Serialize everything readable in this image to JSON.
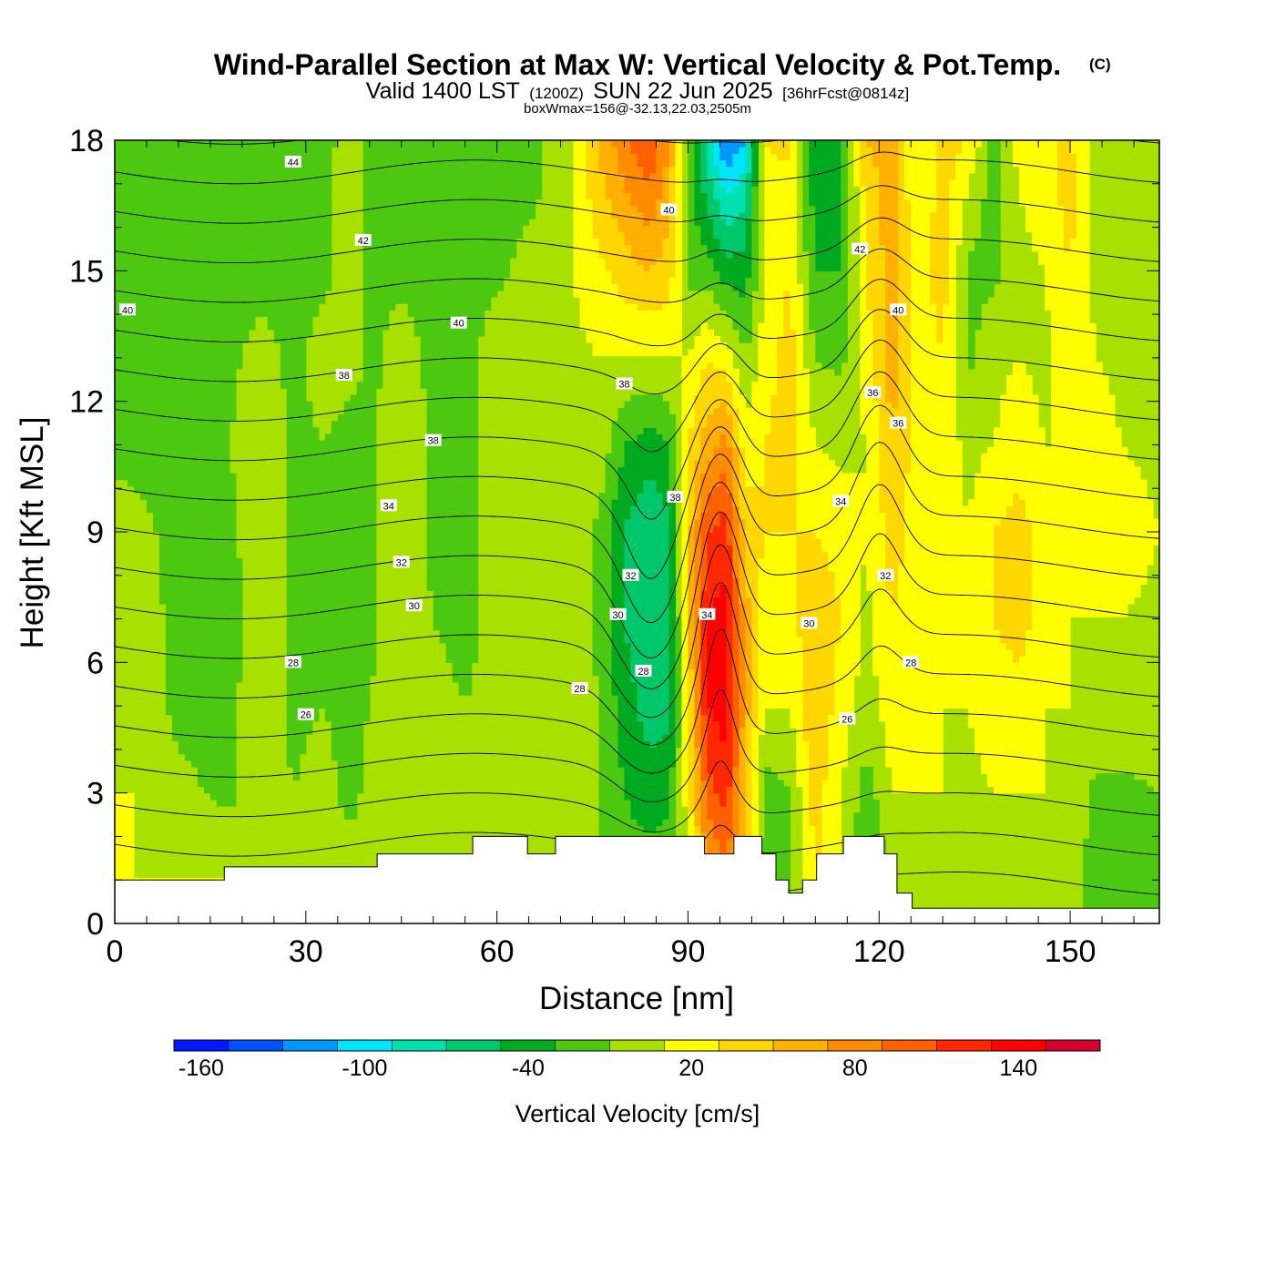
{
  "chart_data": {
    "type": "heatmap",
    "title": "Wind-Parallel Section at Max W: Vertical Velocity & Pot.Temp.",
    "title_mark": "(C)",
    "subtitle": {
      "part1": "Valid 1400 LST",
      "part2": "(1200Z)",
      "part3": "SUN 22 Jun 2025",
      "part4": "[36hrFcst@0814z]"
    },
    "subtitle2": "boxWmax=156@-32.13,22.03,2505m",
    "xlabel": "Distance [nm]",
    "ylabel": "Height [Kft MSL]",
    "xlim": [
      0,
      164
    ],
    "ylim": [
      0,
      18
    ],
    "x_ticks": [
      0,
      30,
      60,
      90,
      120,
      150
    ],
    "y_ticks": [
      0,
      3,
      6,
      9,
      12,
      15,
      18
    ],
    "grid": false,
    "colorbar": {
      "label": "Vertical Velocity [cm/s]",
      "boundaries": [
        -170,
        -150,
        -130,
        -110,
        -90,
        -70,
        -50,
        -30,
        -10,
        10,
        30,
        50,
        70,
        90,
        110,
        130,
        150,
        170
      ],
      "colors": [
        "#0019ff",
        "#0050ff",
        "#0096ff",
        "#00e5ff",
        "#00e0b0",
        "#00c86a",
        "#00aa20",
        "#4dc810",
        "#a8e000",
        "#ffff00",
        "#ffd700",
        "#ffb000",
        "#ff8c00",
        "#ff6000",
        "#ff2800",
        "#ff0000",
        "#d4002e"
      ],
      "tick_labels": [
        "-160",
        "-100",
        "-40",
        "20",
        "80",
        "140"
      ],
      "tick_values": [
        -160,
        -100,
        -40,
        20,
        80,
        140
      ]
    },
    "vertical_velocity_columns": [
      {
        "x": 0,
        "values": [
          10,
          10,
          10,
          10,
          5,
          -20,
          -20,
          -20,
          -15,
          -15
        ]
      },
      {
        "x": 3,
        "values": [
          10,
          10,
          5,
          0,
          -5,
          -15,
          -20,
          -20,
          -20,
          -20
        ]
      },
      {
        "x": 10,
        "values": [
          10,
          -5,
          -15,
          -15,
          -15,
          -15,
          -15,
          -20,
          -20,
          -20
        ]
      },
      {
        "x": 18,
        "values": [
          10,
          -15,
          -15,
          -20,
          -15,
          -10,
          -15,
          -20,
          -20,
          -20
        ]
      },
      {
        "x": 23,
        "values": [
          10,
          5,
          5,
          5,
          5,
          5,
          0,
          -20,
          -20,
          -20
        ]
      },
      {
        "x": 28,
        "values": [
          5,
          -10,
          -15,
          -15,
          -15,
          -15,
          -15,
          -20,
          -20,
          -20
        ]
      },
      {
        "x": 33,
        "values": [
          5,
          0,
          -10,
          -15,
          -15,
          -10,
          0,
          -15,
          -15,
          -20
        ]
      },
      {
        "x": 37,
        "values": [
          5,
          -20,
          -20,
          -20,
          -20,
          -20,
          0,
          5,
          5,
          5
        ]
      },
      {
        "x": 40,
        "values": [
          5,
          0,
          -10,
          -15,
          -15,
          -15,
          -15,
          -15,
          -15,
          -20
        ]
      },
      {
        "x": 45,
        "values": [
          5,
          5,
          5,
          5,
          5,
          5,
          0,
          -15,
          -20,
          -20
        ]
      },
      {
        "x": 50,
        "values": [
          5,
          5,
          0,
          -10,
          -15,
          -15,
          -15,
          -20,
          -20,
          -20
        ]
      },
      {
        "x": 55,
        "values": [
          5,
          5,
          -10,
          -20,
          -20,
          -20,
          -20,
          -20,
          -20,
          -20
        ]
      },
      {
        "x": 60,
        "values": [
          5,
          5,
          5,
          0,
          5,
          5,
          5,
          -15,
          -20,
          -20
        ]
      },
      {
        "x": 66,
        "values": [
          5,
          5,
          5,
          5,
          5,
          5,
          5,
          0,
          -15,
          -15
        ]
      },
      {
        "x": 72,
        "values": [
          5,
          0,
          0,
          5,
          5,
          5,
          5,
          10,
          10,
          10
        ]
      },
      {
        "x": 76,
        "values": [
          -10,
          -10,
          -10,
          -15,
          -15,
          5,
          10,
          25,
          45,
          50
        ]
      },
      {
        "x": 80,
        "values": [
          -20,
          -30,
          -40,
          -50,
          -50,
          -30,
          10,
          40,
          70,
          85
        ]
      },
      {
        "x": 84,
        "values": [
          -20,
          -40,
          -60,
          -70,
          -70,
          -40,
          10,
          50,
          90,
          110
        ]
      },
      {
        "x": 87,
        "values": [
          -15,
          -35,
          -55,
          -60,
          -55,
          -30,
          10,
          40,
          60,
          70
        ]
      },
      {
        "x": 90,
        "values": [
          10,
          20,
          30,
          40,
          40,
          30,
          10,
          -15,
          -20,
          -20
        ]
      },
      {
        "x": 93,
        "values": [
          60,
          100,
          130,
          130,
          110,
          60,
          30,
          -20,
          -60,
          -80
        ]
      },
      {
        "x": 96,
        "values": [
          80,
          120,
          140,
          140,
          120,
          80,
          20,
          -40,
          -100,
          -130
        ]
      },
      {
        "x": 99,
        "values": [
          30,
          50,
          60,
          60,
          40,
          20,
          -10,
          -40,
          -80,
          -110
        ]
      },
      {
        "x": 102,
        "values": [
          -20,
          -20,
          10,
          20,
          30,
          30,
          20,
          10,
          20,
          30
        ]
      },
      {
        "x": 106,
        "values": [
          -15,
          -10,
          10,
          20,
          30,
          40,
          40,
          30,
          20,
          40
        ]
      },
      {
        "x": 110,
        "values": [
          30,
          40,
          50,
          50,
          30,
          10,
          -10,
          -30,
          -40,
          -40
        ]
      },
      {
        "x": 114,
        "values": [
          10,
          10,
          20,
          30,
          20,
          5,
          -15,
          -30,
          -40,
          -40
        ]
      },
      {
        "x": 118,
        "values": [
          -30,
          -20,
          0,
          5,
          10,
          10,
          20,
          30,
          40,
          50
        ]
      },
      {
        "x": 122,
        "values": [
          -10,
          10,
          20,
          30,
          40,
          50,
          60,
          60,
          60,
          60
        ]
      },
      {
        "x": 126,
        "values": [
          5,
          10,
          10,
          20,
          20,
          20,
          20,
          20,
          10,
          10
        ]
      },
      {
        "x": 130,
        "values": [
          5,
          10,
          10,
          20,
          20,
          20,
          30,
          40,
          40,
          40
        ]
      },
      {
        "x": 134,
        "values": [
          5,
          5,
          10,
          10,
          10,
          5,
          -15,
          -15,
          10,
          30
        ]
      },
      {
        "x": 138,
        "values": [
          5,
          10,
          20,
          30,
          30,
          10,
          5,
          -15,
          -20,
          -20
        ]
      },
      {
        "x": 142,
        "values": [
          5,
          10,
          20,
          40,
          40,
          20,
          10,
          5,
          10,
          20
        ]
      },
      {
        "x": 146,
        "values": [
          5,
          10,
          10,
          20,
          20,
          10,
          5,
          10,
          20,
          30
        ]
      },
      {
        "x": 150,
        "values": [
          0,
          5,
          10,
          10,
          10,
          10,
          20,
          30,
          40,
          30
        ]
      },
      {
        "x": 154,
        "values": [
          -20,
          -15,
          5,
          10,
          20,
          20,
          10,
          5,
          5,
          5
        ]
      },
      {
        "x": 158,
        "values": [
          -20,
          -15,
          5,
          10,
          20,
          10,
          5,
          5,
          5,
          5
        ]
      },
      {
        "x": 164,
        "values": [
          -15,
          -10,
          5,
          5,
          10,
          5,
          5,
          5,
          5,
          10
        ]
      }
    ],
    "vertical_velocity_heights": [
      1,
      3,
      5,
      7,
      9,
      11,
      13,
      15,
      17,
      18
    ],
    "terrain": [
      [
        0,
        1.0
      ],
      [
        17.2,
        1.0
      ],
      [
        17.2,
        1.3
      ],
      [
        41.2,
        1.3
      ],
      [
        41.2,
        1.6
      ],
      [
        56.2,
        1.6
      ],
      [
        56.2,
        2.0
      ],
      [
        64.8,
        2.0
      ],
      [
        64.8,
        1.6
      ],
      [
        69.2,
        1.6
      ],
      [
        69.2,
        2.0
      ],
      [
        92.6,
        2.0
      ],
      [
        92.6,
        1.6
      ],
      [
        97.2,
        1.6
      ],
      [
        97.2,
        2.0
      ],
      [
        101.6,
        2.0
      ],
      [
        101.6,
        1.6
      ],
      [
        103.8,
        1.6
      ],
      [
        103.8,
        1.0
      ],
      [
        105.8,
        1.0
      ],
      [
        105.8,
        0.7
      ],
      [
        108.0,
        0.7
      ],
      [
        108.0,
        1.0
      ],
      [
        110.2,
        1.0
      ],
      [
        110.2,
        1.6
      ],
      [
        114.4,
        1.6
      ],
      [
        114.4,
        2.0
      ],
      [
        120.8,
        2.0
      ],
      [
        120.8,
        1.6
      ],
      [
        122.8,
        1.6
      ],
      [
        122.8,
        0.7
      ],
      [
        125.2,
        0.7
      ],
      [
        125.2,
        0.35
      ],
      [
        164,
        0.35
      ]
    ],
    "theta_contours": {
      "levels": [
        24,
        25,
        26,
        27,
        28,
        29,
        30,
        31,
        32,
        33,
        34,
        35,
        36,
        37,
        38,
        39,
        40,
        41,
        42,
        43,
        44
      ],
      "labels": [
        {
          "text": "44",
          "x": 28,
          "y": 17.5
        },
        {
          "text": "42",
          "x": 39,
          "y": 15.7
        },
        {
          "text": "40",
          "x": 2,
          "y": 14.1
        },
        {
          "text": "40",
          "x": 54,
          "y": 13.8
        },
        {
          "text": "38",
          "x": 36,
          "y": 12.6
        },
        {
          "text": "38",
          "x": 80,
          "y": 12.4
        },
        {
          "text": "38",
          "x": 50,
          "y": 11.1
        },
        {
          "text": "38",
          "x": 88,
          "y": 9.8
        },
        {
          "text": "36",
          "x": 119,
          "y": 12.2
        },
        {
          "text": "36",
          "x": 123,
          "y": 11.5
        },
        {
          "text": "34",
          "x": 43,
          "y": 9.6
        },
        {
          "text": "34",
          "x": 114,
          "y": 9.7
        },
        {
          "text": "34",
          "x": 93,
          "y": 7.1
        },
        {
          "text": "32",
          "x": 45,
          "y": 8.3
        },
        {
          "text": "32",
          "x": 81,
          "y": 8.0
        },
        {
          "text": "32",
          "x": 121,
          "y": 8.0
        },
        {
          "text": "30",
          "x": 47,
          "y": 7.3
        },
        {
          "text": "30",
          "x": 79,
          "y": 7.1
        },
        {
          "text": "30",
          "x": 109,
          "y": 6.9
        },
        {
          "text": "28",
          "x": 28,
          "y": 6.0
        },
        {
          "text": "28",
          "x": 73,
          "y": 5.4
        },
        {
          "text": "28",
          "x": 83,
          "y": 5.8
        },
        {
          "text": "28",
          "x": 125,
          "y": 6.0
        },
        {
          "text": "26",
          "x": 30,
          "y": 4.8
        },
        {
          "text": "26",
          "x": 115,
          "y": 4.7
        },
        {
          "text": "40",
          "x": 87,
          "y": 16.4
        },
        {
          "text": "42",
          "x": 117,
          "y": 15.5
        },
        {
          "text": "40",
          "x": 123,
          "y": 14.1
        }
      ]
    }
  }
}
